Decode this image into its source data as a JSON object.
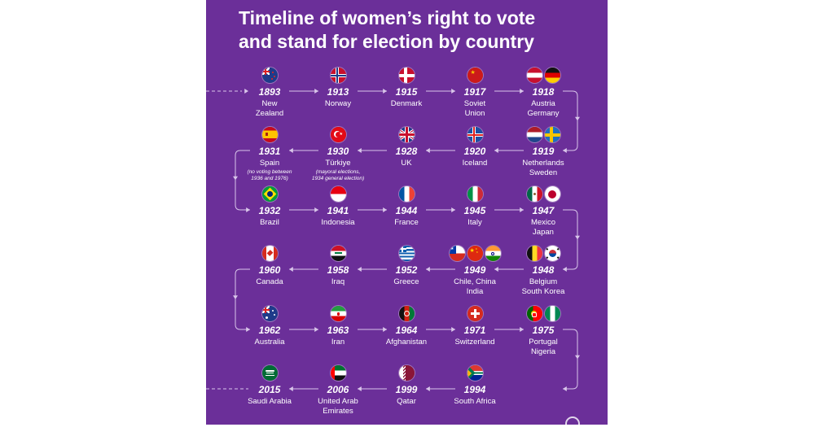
{
  "title": {
    "line1": "Timeline of women’s right to vote",
    "line2": "and stand for election by country"
  },
  "rows": [
    [
      {
        "year": "1893",
        "country": [
          "New",
          "Zealand"
        ],
        "flags": [
          "new-zealand"
        ]
      },
      {
        "year": "1913",
        "country": [
          "Norway"
        ],
        "flags": [
          "norway"
        ]
      },
      {
        "year": "1915",
        "country": [
          "Denmark"
        ],
        "flags": [
          "denmark"
        ]
      },
      {
        "year": "1917",
        "country": [
          "Soviet",
          "Union"
        ],
        "flags": [
          "soviet-union"
        ]
      },
      {
        "year": "1918",
        "country": [
          "Austria",
          "Germany"
        ],
        "flags": [
          "austria",
          "germany"
        ]
      }
    ],
    [
      {
        "year": "1931",
        "country": [
          "Spain"
        ],
        "note": [
          "(no voting between",
          "1936 and 1976)"
        ],
        "flags": [
          "spain"
        ]
      },
      {
        "year": "1930",
        "country": [
          "Türkiye"
        ],
        "note": [
          "(mayoral elections,",
          "1934 general election)"
        ],
        "flags": [
          "turkiye"
        ]
      },
      {
        "year": "1928",
        "country": [
          "UK"
        ],
        "flags": [
          "uk"
        ]
      },
      {
        "year": "1920",
        "country": [
          "Iceland"
        ],
        "flags": [
          "iceland"
        ]
      },
      {
        "year": "1919",
        "country": [
          "Netherlands",
          "Sweden"
        ],
        "flags": [
          "netherlands",
          "sweden"
        ]
      }
    ],
    [
      {
        "year": "1932",
        "country": [
          "Brazil"
        ],
        "flags": [
          "brazil"
        ]
      },
      {
        "year": "1941",
        "country": [
          "Indonesia"
        ],
        "flags": [
          "indonesia"
        ]
      },
      {
        "year": "1944",
        "country": [
          "France"
        ],
        "flags": [
          "france"
        ]
      },
      {
        "year": "1945",
        "country": [
          "Italy"
        ],
        "flags": [
          "italy"
        ]
      },
      {
        "year": "1947",
        "country": [
          "Mexico",
          "Japan"
        ],
        "flags": [
          "mexico",
          "japan"
        ]
      }
    ],
    [
      {
        "year": "1960",
        "country": [
          "Canada"
        ],
        "flags": [
          "canada"
        ]
      },
      {
        "year": "1958",
        "country": [
          "Iraq"
        ],
        "flags": [
          "iraq"
        ]
      },
      {
        "year": "1952",
        "country": [
          "Greece"
        ],
        "flags": [
          "greece"
        ]
      },
      {
        "year": "1949",
        "country": [
          "Chile, China",
          "India"
        ],
        "flags": [
          "chile",
          "china",
          "india"
        ]
      },
      {
        "year": "1948",
        "country": [
          "Belgium",
          "South Korea"
        ],
        "flags": [
          "belgium",
          "south-korea"
        ]
      }
    ],
    [
      {
        "year": "1962",
        "country": [
          "Australia"
        ],
        "flags": [
          "australia"
        ]
      },
      {
        "year": "1963",
        "country": [
          "Iran"
        ],
        "flags": [
          "iran"
        ]
      },
      {
        "year": "1964",
        "country": [
          "Afghanistan"
        ],
        "flags": [
          "afghanistan"
        ]
      },
      {
        "year": "1971",
        "country": [
          "Switzerland"
        ],
        "flags": [
          "switzerland"
        ]
      },
      {
        "year": "1975",
        "country": [
          "Portugal",
          "Nigeria"
        ],
        "flags": [
          "portugal",
          "nigeria"
        ]
      }
    ],
    [
      {
        "year": "2015",
        "country": [
          "Saudi Arabia"
        ],
        "flags": [
          "saudi-arabia"
        ]
      },
      {
        "year": "2006",
        "country": [
          "United Arab",
          "Emirates"
        ],
        "flags": [
          "uae"
        ]
      },
      {
        "year": "1999",
        "country": [
          "Qatar"
        ],
        "flags": [
          "qatar"
        ]
      },
      {
        "year": "1994",
        "country": [
          "South Africa"
        ],
        "flags": [
          "south-africa"
        ]
      }
    ]
  ],
  "colors": {
    "background": "#6b2f99",
    "text": "#ffffff",
    "line": "#d9c6ea"
  }
}
